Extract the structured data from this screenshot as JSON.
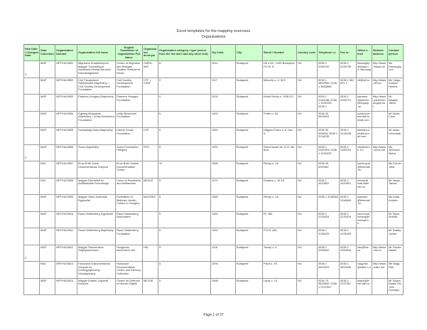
{
  "title": "Excel templates for the mapping exercises",
  "subtitle": "Organisations",
  "footer": "Page 1 of 37",
  "colors": {
    "header_bg": "#ccffcc",
    "border": "#999999"
  },
  "columns": [
    "New Data / Changed Data",
    "Data Collection",
    "Organisation Number",
    "Organisation full name",
    "English Translation of Organisation Full Name",
    "Organisation acronym",
    "Organisation category / type (select from the list don't add any other text)",
    "Zip Code",
    "City",
    "Street / Number",
    "Country code",
    "Telephone nr.",
    "Fax nr.",
    "Office e-mail",
    "Website address",
    "Contact person"
  ],
  "rows": [
    [
      "C",
      "MAP",
      "NFP/HU/0801",
      "Migrációs Kutatóközpont, Magyar Tudományos Akadémia Etnikai-Nemzeti Kisebbségkutató",
      "Centre of Migration and Refugee Studies, Institute of Ethnic",
      "CMRS-IMS",
      "8",
      "1014",
      "Budapest",
      "Úri u.53.; 1250 Budapest, P.O.B. 5.",
      "HU",
      "0036 1 2246700",
      "0036 1 2246795",
      "kisszeghy @mtaki.h u; liforcsag",
      "http://www .mtaki.hu/",
      "Ms Kisszeghy Lea"
    ],
    [
      "",
      "MAP",
      "NFP/HU/0802",
      "Civil Társadalom Fejlődéséért Alapítvány = Civil Society Development Foundation",
      "Civil Society Development Foundation",
      "CTF = CSDF",
      "5",
      "1117",
      "Budapest",
      "Mészöly u. 4. III/3",
      "HU",
      "0036 1 3852960; 0036 1 3853888",
      "0036 1 381 001 1",
      "ctf@ctf.hu",
      "http://www .ctf.hu/",
      "Ms Varga Andrea Helena"
    ],
    [
      "",
      "MAP",
      "NFP/HU/0803",
      "Partners Hungary Alapítvány",
      "Partners Hungary Foundation",
      "",
      "5",
      "1024",
      "Budapest",
      "Keleti Károly u. 15/B II/2.",
      "HU",
      "0036 1 3150188; 0036 1 3151333; 0036 1",
      "0036 1 3155721",
      "partners @partner shungary .hu",
      "http://www .partnersh ungary.hu /",
      "Mr Wagner János"
    ],
    [
      "",
      "MAP",
      "NFP/HU/0804",
      "Egység Mozgalom Alapítvány = Unity Movement Foundation",
      "Unity Movement Foundation",
      "",
      "5",
      "1063",
      "Budapest",
      "Frater u. 52.",
      "HU",
      "0036 30 5505503",
      "",
      "unitymove ment@ho tmail.com",
      "",
      "Mr Davis Chun"
    ],
    [
      "",
      "MAP",
      "NFP/HU/0805",
      "Szabadság Háza Alapítvány",
      "Liberty House Foundation",
      "LHF",
      "5",
      "1082",
      "Budapest",
      "Hőgyes Endre u. 8. fszt. 9.",
      "HU",
      "0036 30 403506; 0036 1 3134035",
      "0036 1 3134035",
      "libertyhou se@hotm ail.com",
      "",
      "Mr Isaac Onomade"
    ],
    [
      "C",
      "MAP",
      "NFP/HU/0806",
      "Soros Alapítvány",
      "Soros Foundation Hungary",
      "SFH",
      "5",
      "1051",
      "Budapest",
      "Szent István tér 11 B. 4th floor",
      "HU",
      "0036 1 3150303; 0036 1 3150233",
      "0036 1 3150201",
      "info@soros .hu",
      "http://www .soros.hu/",
      "Ms Jombach Márta"
    ],
    [
      "",
      "RAC",
      "NFP/HU/0807",
      "B'nai B'rith Zsidó Dokumentációs Központ",
      "B'nai B'rith Jewish Documentation Centre",
      "",
      "12",
      "1065",
      "Budapest",
      "Révay u. 16.",
      "HU",
      "0036 30 6259667",
      "",
      "komenyub @freemail .hu",
      "",
      "Ms Körner Júlia"
    ],
    [
      "",
      "RAC",
      "NFP/HU/0808",
      "Magyar Ellenállók és Antifasiszták Szövetsége",
      "Union of Resistants and Antifascists",
      "MEASZ",
      "5",
      "1074",
      "Budapest",
      "Dohány u. 16-18.",
      "HU",
      "0036 1 3420802",
      "0036 1 3420801",
      "measz@ mail.data net.hu",
      "",
      "Mr Varga Tamás"
    ],
    [
      "",
      "MAP",
      "NFP/HU/0809",
      "Magyar Zsidó Kulturális Egyesület",
      "Federation to Maintain Jewish Culture in Hungary",
      "MAZSIKE",
      "5",
      "1065",
      "Budapest",
      "Révay u. 16.",
      "HU",
      "0036 1 3116665",
      "0036 1 3116665",
      "mazsike @freemail .hu",
      "",
      "Ms Deák Andrea"
    ],
    [
      "",
      "MAP",
      "NFP/HU/0810",
      "Raoul Wallenberg Egyesület",
      "Raoul Wallenberg Association",
      "",
      "5",
      "1462",
      "Budapest",
      "Pf. 484",
      "HU",
      "0036 1 3135429",
      "0036 1 3135429",
      "raoul.wall enberg@f reemail.h u",
      "",
      "Mr Sipos András"
    ],
    [
      "",
      "MAP",
      "NFP/HU/0811",
      "Raoul Wallenberg Alapítvány",
      "Raoul Wallenberg Foundation",
      "",
      "5",
      "1462",
      "Budapest",
      "P.O.B. 484",
      "HU",
      "0036 1 3135429",
      "0036 1 3135429",
      "",
      "",
      "Mr Szalay József"
    ],
    [
      "C",
      "MAP",
      "NFP/HU/0812",
      "Magyar Ökumenikus Segélyszervezet",
      "Hungarian Interchurch Aid",
      "HIA",
      "5",
      "1116",
      "Budapest",
      "Tomaj u. 4.",
      "HU",
      "0036 1 2084802",
      "0036 1 2084834",
      "info@hia. hu",
      "http://www .hia.hu",
      "Mr Fekete Dániel"
    ],
    [
      "",
      "RAC",
      "NFP/HU/0813",
      "Holocaust Dokumentációs Központ és Emlékgyűjtemény Közalapítvány",
      "Holocaust Documentation Centre and Memory Collection",
      "",
      "5",
      "1094",
      "Budapest",
      "Páva u. 39.",
      "HU",
      "0036 1 4553329",
      "0036 1 4553399",
      "nagy.rita @hdke.h u",
      "http://www .hdke.hu/",
      "Ms Nagy Rita"
    ],
    [
      "",
      "MAP",
      "NFP/HU/0814",
      "Magyar Emberi Jogvédő Központ",
      "Centre for Defence of Human Rights",
      "MEJOK",
      "5",
      "1068",
      "Budapest",
      "Lujza u. 14.",
      "HU",
      "0036 70 5529842; 0036 1 2137557",
      "0036 1 2137557",
      "mejok@fr eemail.hu",
      "",
      "Mr Daybo Raadi; Ms Tóth Dorottya"
    ]
  ]
}
